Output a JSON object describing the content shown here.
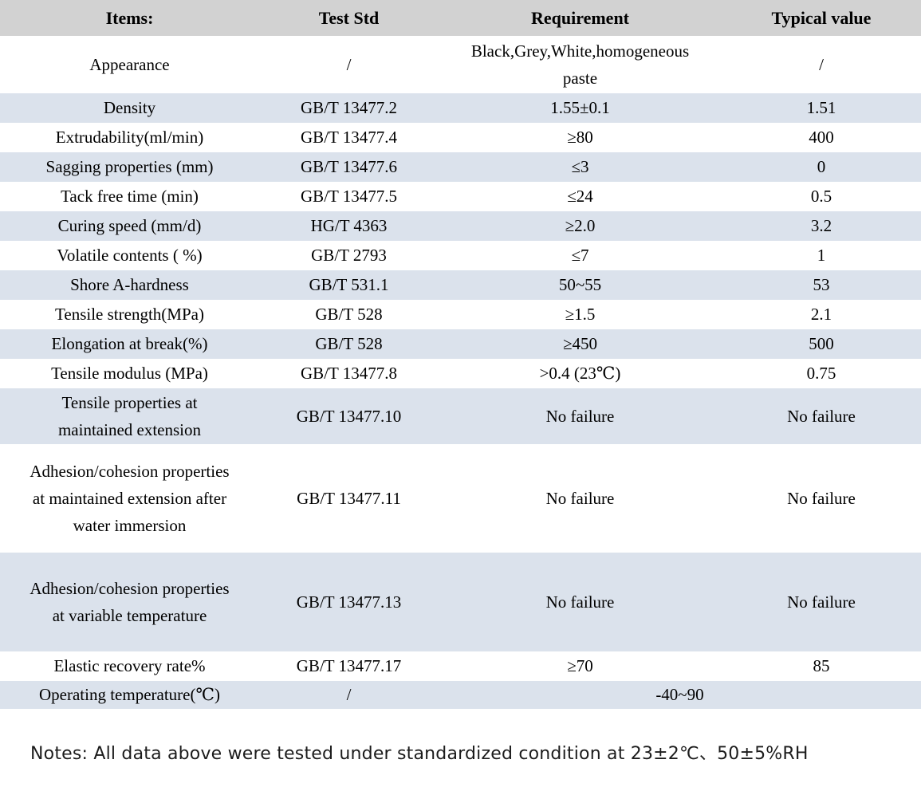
{
  "table": {
    "headers": [
      "Items:",
      "Test Std",
      "Requirement",
      "Typical value"
    ],
    "rows": [
      {
        "item": "Appearance",
        "std": "/",
        "req": "Black,Grey,White,homogeneous paste",
        "typ": "/"
      },
      {
        "item": "Density",
        "std": "GB/T 13477.2",
        "req": "1.55±0.1",
        "typ": "1.51"
      },
      {
        "item": "Extrudability(ml/min)",
        "std": "GB/T 13477.4",
        "req": "≥80",
        "typ": "400"
      },
      {
        "item": "Sagging properties (mm)",
        "std": "GB/T 13477.6",
        "req": "≤3",
        "typ": "0"
      },
      {
        "item": "Tack free time (min)",
        "std": "GB/T 13477.5",
        "req": "≤24",
        "typ": "0.5"
      },
      {
        "item": "Curing speed (mm/d)",
        "std": "HG/T 4363",
        "req": "≥2.0",
        "typ": "3.2"
      },
      {
        "item": "Volatile contents ( %)",
        "std": "GB/T 2793",
        "req": "≤7",
        "typ": "1"
      },
      {
        "item": "Shore A-hardness",
        "std": "GB/T 531.1",
        "req": "50~55",
        "typ": "53"
      },
      {
        "item": "Tensile strength(MPa)",
        "std": "GB/T 528",
        "req": "≥1.5",
        "typ": "2.1"
      },
      {
        "item": "Elongation at break(%)",
        "std": "GB/T 528",
        "req": "≥450",
        "typ": "500"
      },
      {
        "item": "Tensile modulus (MPa)",
        "std": "GB/T 13477.8",
        "req": ">0.4 (23℃)",
        "typ": "0.75"
      },
      {
        "item": "Tensile properties at maintained extension",
        "std": "GB/T 13477.10",
        "req": "No failure",
        "typ": "No failure"
      },
      {
        "item": "Adhesion/cohesion properties at maintained extension after water immersion",
        "std": "GB/T 13477.11",
        "req": "No failure",
        "typ": "No failure"
      },
      {
        "item": "Adhesion/cohesion properties at variable temperature",
        "std": "GB/T 13477.13",
        "req": "No failure",
        "typ": "No failure"
      },
      {
        "item": "Elastic recovery rate%",
        "std": "GB/T 13477.17",
        "req": "≥70",
        "typ": "85"
      },
      {
        "item": "Operating temperature(℃)",
        "std": "/",
        "req": "-40~90"
      }
    ]
  },
  "notes": "Notes: All data above were tested under standardized condition at 23±2℃、50±5%RH",
  "colors": {
    "header_bg": "#d2d2d2",
    "alt_row_bg": "#dbe2ec",
    "row_bg": "#ffffff",
    "text": "#000000"
  }
}
